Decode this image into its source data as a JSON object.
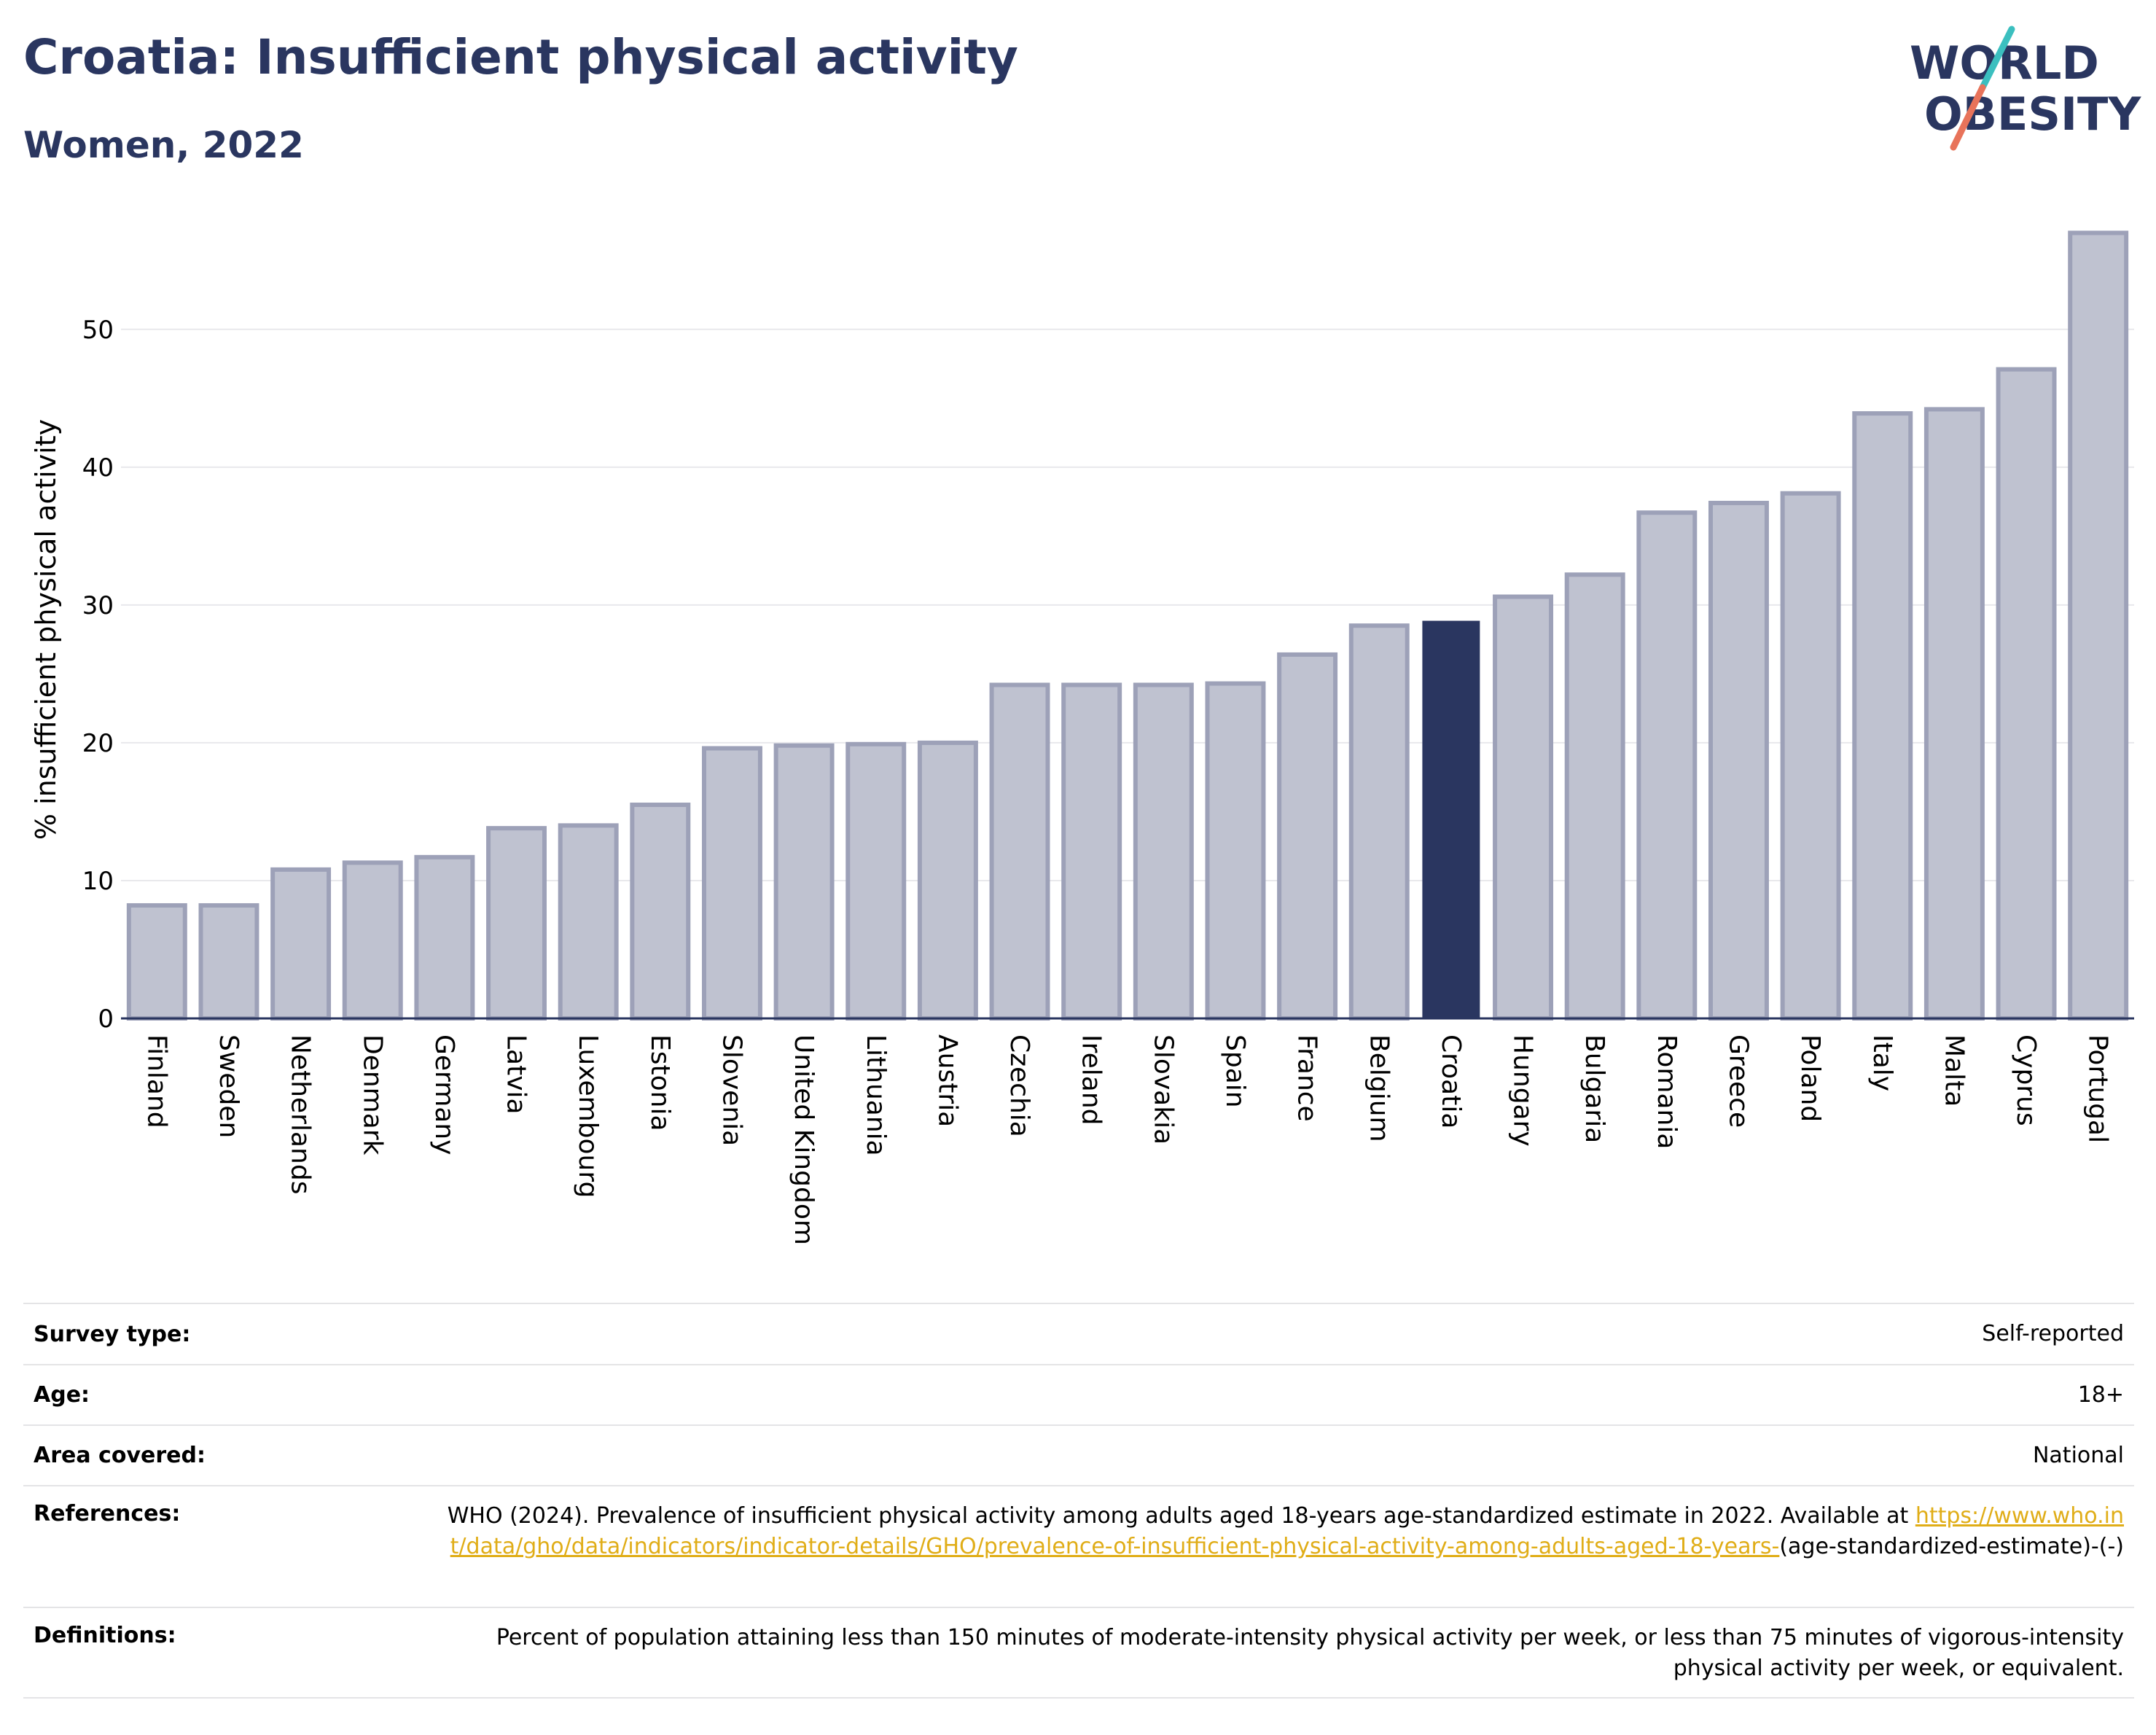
{
  "header": {
    "title": "Croatia: Insufficient physical activity",
    "subtitle": "Women, 2022"
  },
  "logo": {
    "text_line1": "WORLD",
    "text_line2": "OBESITY",
    "colors": {
      "text": "#2a3660",
      "slash_top": "#3bbfbf",
      "slash_bottom": "#e8735a"
    }
  },
  "chart_data": {
    "type": "bar",
    "title": "Croatia: Insufficient physical activity",
    "subtitle": "Women, 2022",
    "xlabel": "",
    "ylabel": "% insufficient physical activity",
    "ylim": [
      0,
      57.5
    ],
    "yticks": [
      0,
      10,
      20,
      30,
      40,
      50
    ],
    "grid": true,
    "highlight": "Croatia",
    "colors": {
      "bar": "#bfc2d0",
      "bar_edge": "#9da1b8",
      "highlight": "#2a3660",
      "grid": "#e8e8ec",
      "axis": "#2a3660"
    },
    "categories": [
      "Finland",
      "Sweden",
      "Netherlands",
      "Denmark",
      "Germany",
      "Latvia",
      "Luxembourg",
      "Estonia",
      "Slovenia",
      "United Kingdom",
      "Lithuania",
      "Austria",
      "Czechia",
      "Ireland",
      "Slovakia",
      "Spain",
      "France",
      "Belgium",
      "Croatia",
      "Hungary",
      "Bulgaria",
      "Romania",
      "Greece",
      "Poland",
      "Italy",
      "Malta",
      "Cyprus",
      "Portugal"
    ],
    "values": [
      8.2,
      8.2,
      10.8,
      11.3,
      11.7,
      13.8,
      14.0,
      15.5,
      19.6,
      19.8,
      19.9,
      20.0,
      24.2,
      24.2,
      24.2,
      24.3,
      26.4,
      28.5,
      28.8,
      30.6,
      32.2,
      36.7,
      37.4,
      38.1,
      43.9,
      44.2,
      47.1,
      57.0
    ]
  },
  "info": [
    {
      "label": "Survey type:",
      "value": "Self-reported"
    },
    {
      "label": "Age:",
      "value": "18+"
    },
    {
      "label": "Area covered:",
      "value": "National"
    },
    {
      "label": "References:",
      "value_prefix": "WHO (2024). Prevalence of insufficient physical activity among adults aged 18-years age-standardized estimate in 2022. Available at",
      "link": "https://www.who.int/data/gho/data/indicators/indicator-details/GHO/prevalence-of-insufficient-physical-activity-among-adults-aged-18-years-",
      "value_suffix": "(age-standardized-estimate)-(-)"
    },
    {
      "label": "Definitions:",
      "value": "Percent of population attaining less than 150 minutes of moderate-intensity physical activity per week, or less than 75 minutes of vigorous-intensity physical activity per week, or equivalent."
    }
  ]
}
